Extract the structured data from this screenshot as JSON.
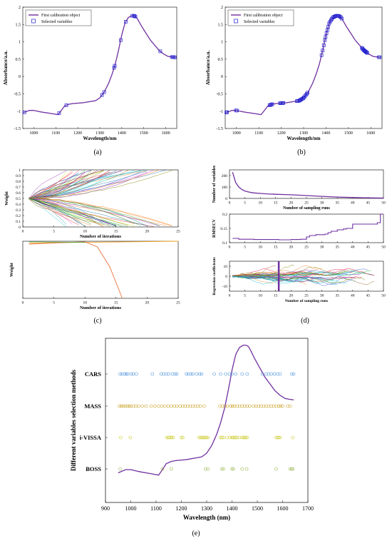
{
  "panel_labels": {
    "a": "(a)",
    "b": "(b)",
    "c": "(c)",
    "d": "(d)",
    "e": "(e)"
  },
  "colors": {
    "spectrum": "#7030a0",
    "marker": "#1f1fd0",
    "cars": "#4a90d9",
    "mass": "#c8a020",
    "ivissa": "#c8c820",
    "boss": "#8fb040"
  },
  "chart_data": [
    {
      "id": "a",
      "type": "line",
      "xlabel": "Wavelength/nm",
      "ylabel": "Absorbance/a.u.",
      "xlim": [
        950,
        1650
      ],
      "ylim": [
        -1.5,
        2
      ],
      "xticks": [
        "1000",
        "1100",
        "1200",
        "1300",
        "1400",
        "1500",
        "1600"
      ],
      "yticks": [
        "-1.5",
        "-1",
        "-0.5",
        "0",
        "0.5",
        "1",
        "1.5",
        "2"
      ],
      "legend": [
        "First calibration object",
        "Selected variables"
      ],
      "legend_position": "top-left",
      "spectrum_x": [
        950,
        980,
        1000,
        1030,
        1060,
        1090,
        1110,
        1125,
        1140,
        1160,
        1180,
        1200,
        1220,
        1240,
        1260,
        1280,
        1300,
        1320,
        1340,
        1355,
        1370,
        1385,
        1400,
        1415,
        1430,
        1445,
        1455,
        1465,
        1475,
        1490,
        1510,
        1530,
        1550,
        1570,
        1590,
        1610,
        1630,
        1645
      ],
      "spectrum_y": [
        -1.05,
        -0.98,
        -0.98,
        -1.02,
        -1.05,
        -1.08,
        -1.1,
        -0.98,
        -0.85,
        -0.8,
        -0.78,
        -0.77,
        -0.76,
        -0.74,
        -0.72,
        -0.7,
        -0.62,
        -0.45,
        -0.2,
        0.05,
        0.35,
        0.75,
        1.2,
        1.55,
        1.7,
        1.75,
        1.75,
        1.72,
        1.62,
        1.45,
        1.25,
        1.05,
        0.9,
        0.75,
        0.65,
        0.58,
        0.56,
        0.55
      ],
      "selected_x": [
        957,
        1115,
        1148,
        1310,
        1320,
        1365,
        1368,
        1395,
        1418,
        1448,
        1455,
        1458,
        1462,
        1575,
        1628,
        1633,
        1637,
        1641
      ]
    },
    {
      "id": "b",
      "type": "line",
      "xlabel": "Wavelength/nm",
      "ylabel": "Absorbance/a.u.",
      "xlim": [
        950,
        1650
      ],
      "ylim": [
        -1.5,
        2
      ],
      "xticks": [
        "1000",
        "1100",
        "1200",
        "1300",
        "1400",
        "1500",
        "1600"
      ],
      "yticks": [
        "-1.5",
        "-1",
        "-0.5",
        "0",
        "0.5",
        "1",
        "1.5",
        "2"
      ],
      "legend": [
        "First calibration object",
        "Selected variables"
      ],
      "legend_position": "top-left",
      "selected_x": [
        955,
        958,
        998,
        1002,
        1148,
        1152,
        1156,
        1160,
        1195,
        1198,
        1202,
        1206,
        1210,
        1270,
        1274,
        1278,
        1282,
        1286,
        1290,
        1294,
        1298,
        1302,
        1306,
        1310,
        1314,
        1318,
        1380,
        1385,
        1390,
        1395,
        1398,
        1402,
        1406,
        1410,
        1414,
        1418,
        1422,
        1426,
        1430,
        1434,
        1438,
        1442,
        1446,
        1450,
        1454,
        1458,
        1462,
        1466,
        1470,
        1560,
        1563,
        1566,
        1569,
        1572,
        1575,
        1578,
        1581,
        1584,
        1636,
        1640
      ]
    },
    {
      "id": "c-top",
      "type": "line",
      "xlabel": "Number of iterations",
      "ylabel": "Weight",
      "xlim": [
        0,
        25
      ],
      "ylim": [
        0,
        1
      ],
      "xticks": [
        "0",
        "5",
        "10",
        "15",
        "20",
        "25"
      ],
      "yticks": [
        "0",
        "0.1",
        "0.2",
        "0.3",
        "0.4",
        "0.5",
        "0.6",
        "0.7",
        "0.8",
        "0.9",
        "1"
      ],
      "start_value": 0.5,
      "n_lines": 70
    },
    {
      "id": "c-bottom",
      "type": "line",
      "xlabel": "Number of iterations",
      "ylabel": "Weight",
      "xlim": [
        0,
        25
      ],
      "ylim": [
        0,
        1
      ],
      "xticks": [
        "0",
        "5",
        "10",
        "15",
        "20",
        "25"
      ],
      "yticks": []
    },
    {
      "id": "d-top",
      "type": "line",
      "xlabel": "Number of sampling runs",
      "ylabel": "Number of variables",
      "xlim": [
        0,
        50
      ],
      "ylim": [
        0,
        250
      ],
      "xticks": [
        "0",
        "5",
        "10",
        "15",
        "20",
        "25",
        "30",
        "35",
        "40",
        "45",
        "50"
      ],
      "yticks": [
        "0",
        "100",
        "200"
      ],
      "x": [
        1,
        2,
        3,
        4,
        5,
        6,
        7,
        8,
        10,
        12,
        15,
        18,
        20,
        25,
        30,
        35,
        40,
        45,
        50
      ],
      "y": [
        230,
        140,
        100,
        78,
        65,
        58,
        52,
        48,
        44,
        40,
        36,
        34,
        32,
        25,
        18,
        12,
        8,
        5,
        3
      ]
    },
    {
      "id": "d-mid",
      "type": "line",
      "xlabel": "",
      "ylabel": "RMSECV",
      "xlim": [
        0,
        50
      ],
      "ylim": [
        0.1,
        0.2
      ],
      "xticks": [
        "0",
        "5",
        "10",
        "15",
        "20",
        "25",
        "30",
        "35",
        "40",
        "45",
        "50"
      ],
      "yticks": [
        "0.1",
        "0.15",
        "0.2"
      ],
      "x": [
        1,
        3,
        5,
        8,
        12,
        16,
        20,
        23,
        25,
        26,
        28,
        31,
        32,
        33,
        35,
        37,
        38,
        40,
        48,
        49,
        50
      ],
      "y": [
        0.115,
        0.112,
        0.112,
        0.111,
        0.111,
        0.11,
        0.111,
        0.112,
        0.12,
        0.125,
        0.128,
        0.13,
        0.135,
        0.14,
        0.145,
        0.148,
        0.15,
        0.165,
        0.17,
        0.2,
        0.2
      ]
    },
    {
      "id": "d-bottom",
      "type": "line",
      "xlabel": "Number of sampling runs",
      "ylabel": "Regression coefficients",
      "xlim": [
        0,
        50
      ],
      "ylim": [
        -15,
        15
      ],
      "xticks": [
        "0",
        "5",
        "10",
        "15",
        "20",
        "25",
        "30",
        "35",
        "40",
        "45",
        "50"
      ],
      "yticks": [
        "-10",
        "0",
        "10"
      ],
      "marker_x": 16
    },
    {
      "id": "e",
      "type": "scatter",
      "xlabel": "Wavelength (nm)",
      "ylabel": "Different variables selection methods",
      "xlim": [
        900,
        1700
      ],
      "xticks": [
        "900",
        "1000",
        "1100",
        "1200",
        "1300",
        "1400",
        "1500",
        "1600",
        "1700"
      ],
      "categories": [
        "CARS",
        "MASS",
        "i-VISSA",
        "BOSS"
      ],
      "series": [
        {
          "name": "CARS",
          "values": [
            958,
            965,
            975,
            982,
            988,
            1002,
            1010,
            1022,
            1085,
            1120,
            1130,
            1140,
            1150,
            1165,
            1175,
            1182,
            1220,
            1228,
            1238,
            1245,
            1260,
            1272,
            1280,
            1330,
            1355,
            1375,
            1390,
            1400,
            1415,
            1440,
            1460,
            1520,
            1535,
            1545,
            1555,
            1568,
            1580,
            1590,
            1636,
            1644
          ]
        },
        {
          "name": "MASS",
          "values": [
            955,
            962,
            970,
            978,
            986,
            994,
            1000,
            1010,
            1020,
            1030,
            1045,
            1060,
            1080,
            1095,
            1110,
            1122,
            1135,
            1148,
            1160,
            1172,
            1182,
            1195,
            1205,
            1215,
            1225,
            1235,
            1245,
            1255,
            1265,
            1275,
            1290,
            1352,
            1362,
            1372,
            1382,
            1395,
            1402,
            1410,
            1420,
            1430,
            1440,
            1450,
            1460,
            1470,
            1485,
            1495,
            1505,
            1515,
            1525,
            1535,
            1545,
            1555,
            1565,
            1575,
            1585,
            1592,
            1600,
            1620,
            1630
          ]
        },
        {
          "name": "i-VISSA",
          "values": [
            960,
            998,
            1142,
            1148,
            1152,
            1158,
            1162,
            1168,
            1200,
            1205,
            1270,
            1275,
            1280,
            1285,
            1290,
            1295,
            1300,
            1305,
            1355,
            1360,
            1365,
            1380,
            1392,
            1400,
            1405,
            1410,
            1415,
            1420,
            1430,
            1440,
            1445,
            1450,
            1455,
            1460,
            1575,
            1580,
            1585,
            1590,
            1640
          ]
        },
        {
          "name": "BOSS",
          "values": [
            958,
            1125,
            1160,
            1295,
            1305,
            1360,
            1366,
            1400,
            1405,
            1440,
            1458,
            1575,
            1630,
            1636,
            1640
          ]
        }
      ],
      "spectrum_note": "overlaid absorbance spectrum"
    }
  ]
}
